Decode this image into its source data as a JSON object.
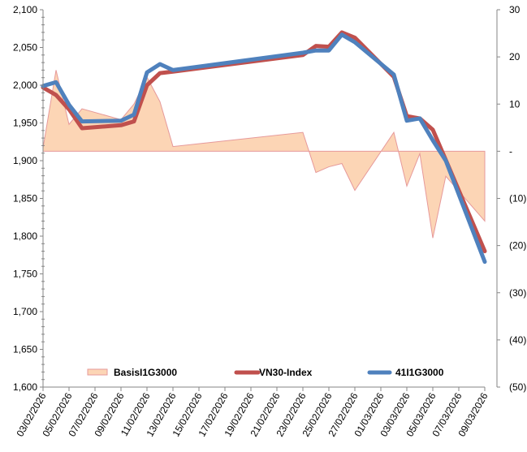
{
  "chart_data": {
    "type": "line",
    "title": "",
    "x": [
      "03/02/2026",
      "04/02/2026",
      "05/02/2026",
      "06/02/2026",
      "09/02/2026",
      "10/02/2026",
      "11/02/2026",
      "12/02/2026",
      "13/02/2026",
      "23/02/2026",
      "24/02/2026",
      "25/02/2026",
      "26/02/2026",
      "27/02/2026",
      "02/03/2026",
      "03/03/2026",
      "04/03/2026",
      "05/03/2026",
      "06/03/2026",
      "09/03/2026"
    ],
    "x_tick_labels": [
      "03/02/2026",
      "05/02/2026",
      "07/02/2026",
      "09/02/2026",
      "11/02/2026",
      "13/02/2026",
      "15/02/2026",
      "17/02/2026",
      "19/02/2026",
      "21/02/2026",
      "23/02/2026",
      "25/02/2026",
      "27/02/2026",
      "01/03/2026",
      "03/03/2026",
      "05/03/2026",
      "07/03/2026",
      "09/03/2026"
    ],
    "y_left": {
      "range": [
        1600,
        2100
      ],
      "tick_labels": [
        "1,600",
        "1,650",
        "1,700",
        "1,750",
        "1,800",
        "1,850",
        "1,900",
        "1,950",
        "2,000",
        "2,050",
        "2,100"
      ]
    },
    "y_right": {
      "range": [
        -50,
        30
      ],
      "tick_labels": [
        "(50)",
        "(40)",
        "(30)",
        "(20)",
        "(10)",
        "-",
        "10",
        "20",
        "30"
      ]
    },
    "series": [
      {
        "name": "BasisI1G3000",
        "type": "area",
        "axis": "right",
        "color": "#FCD5B5",
        "stroke": "#E6999A",
        "values": [
          0.7,
          17.2,
          5.7,
          9.0,
          6.7,
          10.0,
          15.7,
          10.5,
          1.0,
          4.0,
          -4.5,
          -3.3,
          -2.6,
          -8.3,
          4.0,
          -7.4,
          -0.5,
          -18.4,
          -5.3,
          -14.8
        ]
      },
      {
        "name": "VN30-Index",
        "type": "line",
        "axis": "left",
        "color": "#C0504D",
        "values": [
          1997,
          1987,
          1968,
          1943,
          1947,
          1952,
          2000,
          2016,
          2018,
          2040,
          2052,
          2051,
          2070,
          2063,
          2011,
          1959,
          1956,
          1941,
          1901,
          1780
        ]
      },
      {
        "name": "41I1G3000",
        "type": "line",
        "axis": "left",
        "color": "#4F81BD",
        "values": [
          1999,
          2004,
          1974,
          1952,
          1953,
          1961,
          2017,
          2028,
          2020,
          2043,
          2046,
          2046,
          2067,
          2057,
          2014,
          1953,
          1956,
          1927,
          1900,
          1766
        ]
      }
    ],
    "legend": "bottom-inside",
    "grid": false
  }
}
